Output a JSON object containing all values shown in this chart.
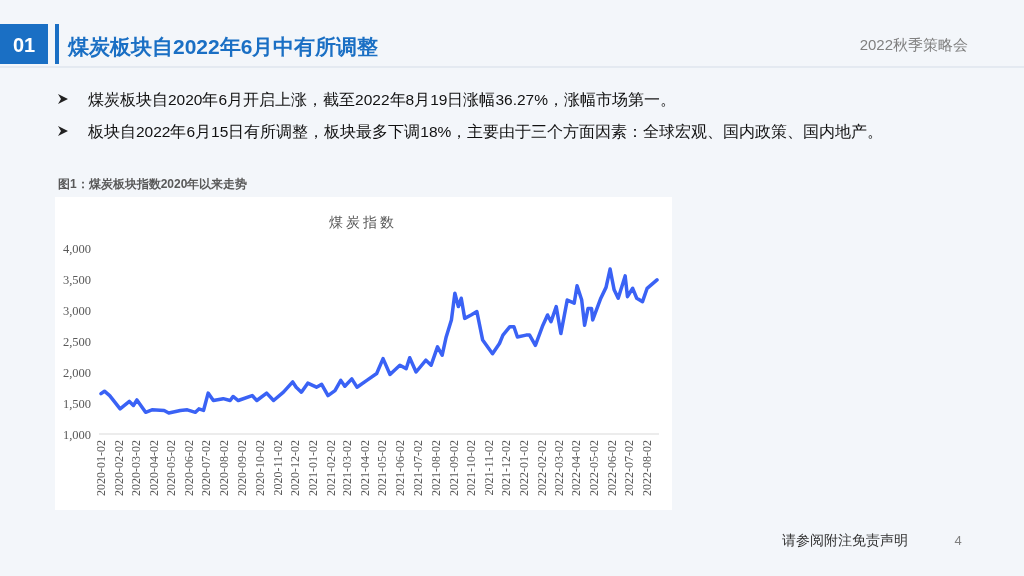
{
  "chart_data": {
    "type": "line",
    "title": "煤炭指数",
    "annotations": [
      "01",
      "煤炭板块自2022年6月中有所调整",
      "2022秋季策略会",
      "煤炭板块自2020年6月开启上涨，截至2022年8月19日涨幅36.27%，涨幅市场第一。",
      "板块自2022年6月15日有所调整，板块最多下调18%，主要由于三个方面因素：全球宏观、国内政策、国内地产。",
      "图1：煤炭板块指数2020年以来走势",
      "请参阅附注免责声明",
      "4"
    ],
    "x": [
      "2020-01-02",
      "2020-01-08",
      "2020-01-17",
      "2020-02-04",
      "2020-02-20",
      "2020-02-27",
      "2020-03-04",
      "2020-03-19",
      "2020-03-30",
      "2020-04-20",
      "2020-04-28",
      "2020-05-18",
      "2020-05-30",
      "2020-06-13",
      "2020-06-19",
      "2020-06-27",
      "2020-07-05",
      "2020-07-14",
      "2020-07-31",
      "2020-08-12",
      "2020-08-17",
      "2020-08-26",
      "2020-09-19",
      "2020-09-27",
      "2020-10-14",
      "2020-10-26",
      "2020-11-12",
      "2020-11-28",
      "2020-12-04",
      "2020-12-13",
      "2020-12-24",
      "2021-01-08",
      "2021-01-17",
      "2021-01-28",
      "2021-02-09",
      "2021-02-19",
      "2021-02-26",
      "2021-03-10",
      "2021-03-19",
      "2021-04-05",
      "2021-04-22",
      "2021-05-03",
      "2021-05-15",
      "2021-06-01",
      "2021-06-12",
      "2021-06-18",
      "2021-06-29",
      "2021-07-16",
      "2021-07-25",
      "2021-08-05",
      "2021-08-13",
      "2021-08-20",
      "2021-08-29",
      "2021-09-04",
      "2021-09-10",
      "2021-09-15",
      "2021-09-21",
      "2021-10-02",
      "2021-10-12",
      "2021-10-22",
      "2021-11-08",
      "2021-11-20",
      "2021-11-26",
      "2021-12-08",
      "2021-12-15",
      "2021-12-21",
      "2022-01-05",
      "2022-01-11",
      "2022-01-21",
      "2022-02-03",
      "2022-02-11",
      "2022-02-17",
      "2022-02-26",
      "2022-03-06",
      "2022-03-17",
      "2022-03-29",
      "2022-04-03",
      "2022-04-11",
      "2022-04-16",
      "2022-04-22",
      "2022-04-28",
      "2022-04-30",
      "2022-05-14",
      "2022-05-23",
      "2022-05-30",
      "2022-06-06",
      "2022-06-13",
      "2022-06-25",
      "2022-06-29",
      "2022-07-08",
      "2022-07-15",
      "2022-07-25",
      "2022-08-02",
      "2022-08-19"
    ],
    "series": [
      {
        "color": "#3a62f5",
        "values": [
          1650,
          1690,
          1620,
          1405,
          1525,
          1460,
          1550,
          1350,
          1390,
          1380,
          1340,
          1380,
          1390,
          1350,
          1405,
          1380,
          1660,
          1540,
          1570,
          1540,
          1605,
          1540,
          1620,
          1540,
          1660,
          1540,
          1675,
          1840,
          1755,
          1675,
          1820,
          1755,
          1800,
          1620,
          1700,
          1865,
          1770,
          1890,
          1755,
          1865,
          1975,
          2215,
          1960,
          2110,
          2055,
          2230,
          2000,
          2190,
          2110,
          2405,
          2270,
          2565,
          2840,
          3270,
          3055,
          3190,
          2865,
          2920,
          2975,
          2515,
          2295,
          2460,
          2595,
          2730,
          2730,
          2565,
          2595,
          2595,
          2430,
          2755,
          2920,
          2810,
          3055,
          2620,
          3160,
          3110,
          3390,
          3160,
          2755,
          3025,
          3025,
          2840,
          3190,
          3365,
          3660,
          3325,
          3190,
          3550,
          3215,
          3350,
          3190,
          3135,
          3350,
          3485
        ]
      }
    ],
    "xlim": [
      "2020-01-02",
      "2022-08-19"
    ],
    "xticks": [
      "2020-01-02",
      "2020-02-02",
      "2020-03-02",
      "2020-04-02",
      "2020-05-02",
      "2020-06-02",
      "2020-07-02",
      "2020-08-02",
      "2020-09-02",
      "2020-10-02",
      "2020-11-02",
      "2020-12-02",
      "2021-01-02",
      "2021-02-02",
      "2021-03-02",
      "2021-04-02",
      "2021-05-02",
      "2021-06-02",
      "2021-07-02",
      "2021-08-02",
      "2021-09-02",
      "2021-10-02",
      "2021-11-02",
      "2021-12-02",
      "2022-01-02",
      "2022-02-02",
      "2022-03-02",
      "2022-04-02",
      "2022-05-02",
      "2022-06-02",
      "2022-07-02",
      "2022-08-02"
    ],
    "ylim": [
      1000,
      4000
    ],
    "yticks": [
      {
        "value": 1000,
        "label": "1,000"
      },
      {
        "value": 1500,
        "label": "1,500"
      },
      {
        "value": 2000,
        "label": "2,000"
      },
      {
        "value": 2500,
        "label": "2,500"
      },
      {
        "value": 3000,
        "label": "3,000"
      },
      {
        "value": 3500,
        "label": "3,500"
      },
      {
        "value": 4000,
        "label": "4,000"
      }
    ],
    "line_style": "solid"
  }
}
